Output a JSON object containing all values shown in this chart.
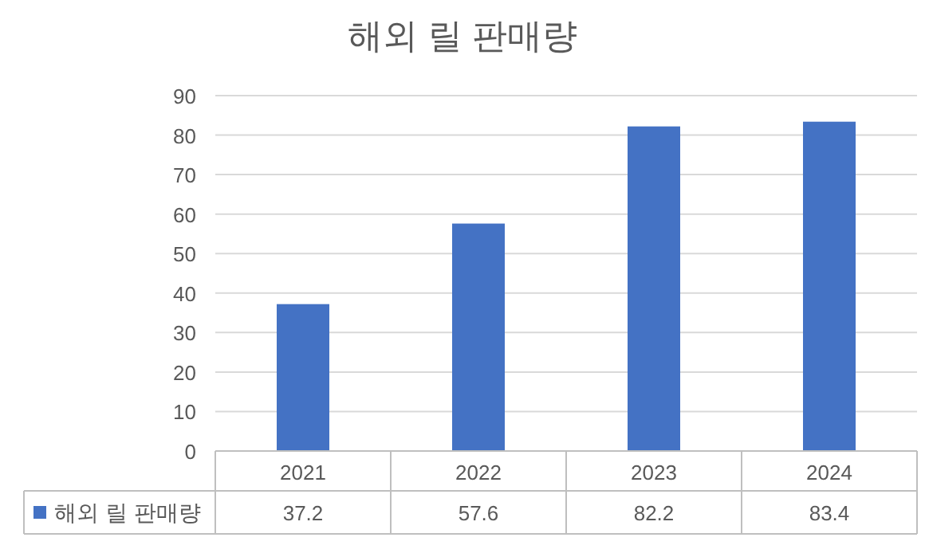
{
  "chart_data": {
    "type": "bar",
    "title": "해외 릴 판매량",
    "categories": [
      "2021",
      "2022",
      "2023",
      "2024"
    ],
    "series": [
      {
        "name": "해외 릴 판매량",
        "color": "#4472c4",
        "values": [
          37.2,
          57.6,
          82.2,
          83.4
        ]
      }
    ],
    "ylim": [
      0,
      90
    ],
    "yticks": [
      0,
      10,
      20,
      30,
      40,
      50,
      60,
      70,
      80,
      90
    ],
    "grid": "y",
    "data_labels": true,
    "legend": "bottom"
  }
}
